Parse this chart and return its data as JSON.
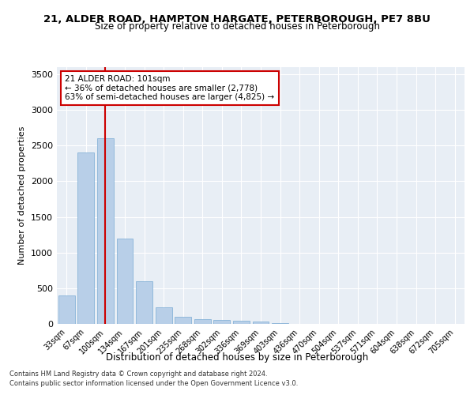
{
  "title1": "21, ALDER ROAD, HAMPTON HARGATE, PETERBOROUGH, PE7 8BU",
  "title2": "Size of property relative to detached houses in Peterborough",
  "xlabel": "Distribution of detached houses by size in Peterborough",
  "ylabel": "Number of detached properties",
  "categories": [
    "33sqm",
    "67sqm",
    "100sqm",
    "134sqm",
    "167sqm",
    "201sqm",
    "235sqm",
    "268sqm",
    "302sqm",
    "336sqm",
    "369sqm",
    "403sqm",
    "436sqm",
    "470sqm",
    "504sqm",
    "537sqm",
    "571sqm",
    "604sqm",
    "638sqm",
    "672sqm",
    "705sqm"
  ],
  "values": [
    400,
    2400,
    2600,
    1200,
    600,
    230,
    100,
    70,
    60,
    40,
    30,
    10,
    5,
    2,
    2,
    1,
    1,
    0,
    0,
    0,
    0
  ],
  "bar_color": "#b8cfe8",
  "bar_edge_color": "#7aabd4",
  "vline_x": 2,
  "vline_color": "#cc0000",
  "annotation_text": "21 ALDER ROAD: 101sqm\n← 36% of detached houses are smaller (2,778)\n63% of semi-detached houses are larger (4,825) →",
  "ylim": [
    0,
    3600
  ],
  "yticks": [
    0,
    500,
    1000,
    1500,
    2000,
    2500,
    3000,
    3500
  ],
  "bg_color": "#e8eef5",
  "footer1": "Contains HM Land Registry data © Crown copyright and database right 2024.",
  "footer2": "Contains public sector information licensed under the Open Government Licence v3.0."
}
